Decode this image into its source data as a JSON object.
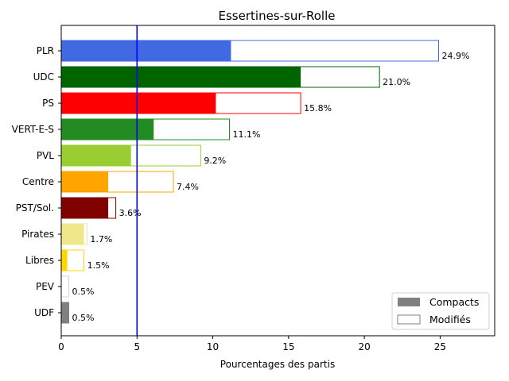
{
  "chart_data": {
    "type": "bar",
    "orientation": "horizontal",
    "title": "Essertines-sur-Rolle",
    "xlabel": "Pourcentages des partis",
    "ylabel": "",
    "xlim": [
      0,
      28.6
    ],
    "xticks": [
      0,
      5,
      10,
      15,
      20,
      25
    ],
    "grid": false,
    "reference_line": {
      "x": 5,
      "color": "#0000ff"
    },
    "legend": {
      "position": "lower-right",
      "entries": [
        {
          "label": "Compacts",
          "style": "filled",
          "color": "#808080"
        },
        {
          "label": "Modifiés",
          "style": "outline",
          "color": "#808080"
        }
      ]
    },
    "series_names": [
      "Compacts",
      "Modifiés"
    ],
    "categories": [
      "PLR",
      "UDC",
      "PS",
      "VERT-E-S",
      "PVL",
      "Centre",
      "PST/Sol.",
      "Pirates",
      "Libres",
      "PEV",
      "UDF"
    ],
    "colors": [
      "#4169e1",
      "#006400",
      "#ff0000",
      "#228b22",
      "#9acd32",
      "#ffa500",
      "#800000",
      "#f0e68c",
      "#ffd700",
      "#d3d3d3",
      "#808080"
    ],
    "compacts": [
      11.2,
      15.8,
      10.2,
      6.1,
      4.6,
      3.1,
      3.1,
      1.5,
      0.4,
      0.0,
      0.5
    ],
    "totals": [
      24.9,
      21.0,
      15.8,
      11.1,
      9.2,
      7.4,
      3.6,
      1.7,
      1.5,
      0.5,
      0.5
    ],
    "labels": [
      "24.9%",
      "21.0%",
      "15.8%",
      "11.1%",
      "9.2%",
      "7.4%",
      "3.6%",
      "1.7%",
      "1.5%",
      "0.5%",
      "0.5%"
    ]
  }
}
